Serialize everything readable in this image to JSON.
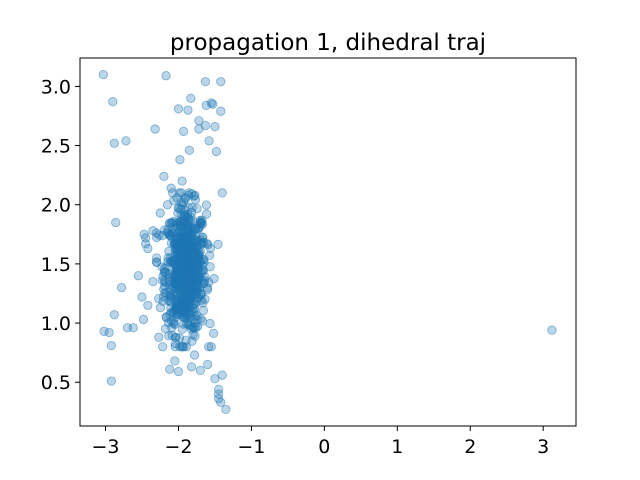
{
  "chart_data": {
    "type": "scatter",
    "title": "propagation 1, dihedral traj",
    "xlabel": "",
    "ylabel": "",
    "xlim": [
      -3.35,
      3.45
    ],
    "ylim": [
      0.13,
      3.24
    ],
    "xticks": [
      -3,
      -2,
      -1,
      0,
      1,
      2,
      3
    ],
    "xtick_labels": [
      "−3",
      "−2",
      "−1",
      "0",
      "1",
      "2",
      "3"
    ],
    "yticks": [
      0.5,
      1.0,
      1.5,
      2.0,
      2.5,
      3.0
    ],
    "ytick_labels": [
      "0.5",
      "1.0",
      "1.5",
      "2.0",
      "2.5",
      "3.0"
    ],
    "grid": false,
    "marker_color": "#1f77b4",
    "marker_alpha": 0.3,
    "series": [
      {
        "name": "dihedral",
        "x": [
          -3.03,
          -2.17,
          -2.9,
          -2.88,
          -2.72,
          -2.86,
          -3.02,
          -2.95,
          -2.92,
          -2.78,
          -2.88,
          -2.7,
          -2.92,
          -2.62,
          -2.0,
          -2.32,
          -1.87,
          -1.63,
          -1.62,
          -1.42,
          -1.55,
          -1.53,
          -1.42,
          -1.5,
          -1.58,
          -1.83,
          -1.63,
          -1.72,
          -1.93,
          -1.72,
          -1.48,
          -1.4,
          -1.45,
          -1.55,
          -1.42,
          -1.82,
          -1.7,
          -1.6,
          -1.78,
          -2.05,
          -2.12,
          -2.27,
          -2.48,
          -2.42,
          -2.35,
          -2.5,
          -2.55,
          -2.45,
          -2.42,
          -2.47,
          -2.35,
          -2.45,
          -2.3,
          -2.22,
          -1.35,
          -1.45,
          -1.4,
          -1.5,
          -1.45,
          3.12,
          -2.0,
          -1.95,
          -2.2,
          -2.15,
          -2.08,
          -1.9,
          -1.98,
          -1.85,
          -2.1,
          -2.25
        ],
        "y": [
          3.1,
          3.09,
          2.87,
          2.52,
          2.54,
          1.85,
          0.93,
          0.92,
          0.81,
          1.3,
          1.07,
          0.96,
          0.51,
          0.96,
          2.81,
          2.64,
          2.8,
          3.04,
          2.84,
          3.04,
          2.86,
          2.85,
          2.79,
          2.66,
          2.54,
          2.9,
          2.67,
          2.64,
          2.62,
          2.71,
          2.45,
          2.1,
          0.44,
          0.8,
          0.33,
          0.63,
          0.6,
          0.65,
          0.73,
          0.68,
          0.61,
          0.88,
          1.03,
          1.15,
          1.35,
          1.22,
          1.4,
          1.72,
          1.63,
          1.75,
          1.78,
          1.67,
          1.55,
          1.36,
          0.27,
          0.4,
          0.56,
          0.53,
          0.36,
          0.94,
          0.59,
          2.2,
          2.24,
          2.0,
          2.1,
          2.05,
          2.38,
          2.46,
          2.14,
          1.93
        ]
      }
    ],
    "dense_cluster": {
      "count": 720,
      "x_mean": -1.9,
      "x_sd": 0.14,
      "y_mean": 1.45,
      "y_sd": 0.27
    }
  }
}
